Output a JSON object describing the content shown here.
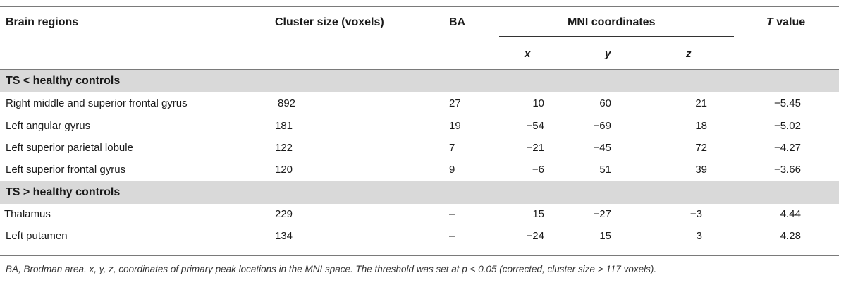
{
  "header": {
    "brain_regions": "Brain regions",
    "cluster_size": "Cluster size (voxels)",
    "ba": "BA",
    "mni": "MNI coordinates",
    "t_value_italic": "T",
    "t_value_rest": " value",
    "x": "x",
    "y": "y",
    "z": "z"
  },
  "sections": [
    {
      "title": "TS < healthy controls",
      "rows": [
        {
          "region": "Right middle and superior frontal gyrus",
          "size": "892",
          "ba": "27",
          "x": "10",
          "y": "60",
          "z": "21",
          "t": "−5.45"
        },
        {
          "region": "Left angular gyrus",
          "size": "181",
          "ba": "19",
          "x": "−54",
          "y": "−69",
          "z": "18",
          "t": "−5.02"
        },
        {
          "region": "Left superior parietal lobule",
          "size": "122",
          "ba": "7",
          "x": "−21",
          "y": "−45",
          "z": "72",
          "t": "−4.27"
        },
        {
          "region": "Left superior frontal gyrus",
          "size": "120",
          "ba": "9",
          "x": "−6",
          "y": "51",
          "z": "39",
          "t": "−3.66"
        }
      ]
    },
    {
      "title": "TS > healthy controls",
      "rows": [
        {
          "region": "Thalamus",
          "size": "229",
          "ba": "–",
          "x": "15",
          "y": "−27",
          "z": "−3",
          "t": "4.44"
        },
        {
          "region": "Left putamen",
          "size": "134",
          "ba": "–",
          "x": "−24",
          "y": "15",
          "z": "3",
          "t": "4.28"
        }
      ]
    }
  ],
  "footnote": "BA, Brodman area. x, y, z, coordinates of primary peak locations in the MNI space. The threshold was set at p < 0.05 (corrected, cluster size > 117 voxels)."
}
